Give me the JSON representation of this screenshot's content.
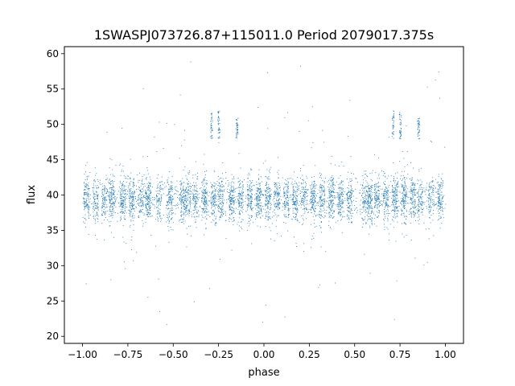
{
  "chart_data": {
    "type": "scatter",
    "title": "1SWASPJ073726.87+115011.0 Period 2079017.375s",
    "xlabel": "phase",
    "ylabel": "flux",
    "xlim": [
      -1.1,
      1.1
    ],
    "ylim": [
      19,
      61
    ],
    "xticks": [
      -1.0,
      -0.75,
      -0.5,
      -0.25,
      0.0,
      0.25,
      0.5,
      0.75,
      1.0
    ],
    "xtick_labels": [
      "−1.00",
      "−0.75",
      "−0.50",
      "−0.25",
      "0.00",
      "0.25",
      "0.50",
      "0.75",
      "1.00"
    ],
    "yticks": [
      20,
      25,
      30,
      35,
      40,
      45,
      50,
      55,
      60
    ],
    "ytick_labels": [
      "20",
      "25",
      "30",
      "35",
      "40",
      "45",
      "50",
      "55",
      "60"
    ],
    "grid": false,
    "legend": "none",
    "point_color": "#1f77b4",
    "phase_range": [
      -1.0,
      1.0
    ],
    "flux_median": 39.5,
    "flux_spread": [
      34,
      46
    ],
    "flux_extremes": [
      21,
      59
    ],
    "dense_columns_phase": [
      -0.98,
      -0.93,
      -0.88,
      -0.84,
      -0.78,
      -0.73,
      -0.68,
      -0.64,
      -0.58,
      -0.52,
      -0.45,
      -0.42,
      -0.38,
      -0.33,
      -0.28,
      -0.24,
      -0.18,
      -0.13,
      -0.08,
      -0.03,
      0.02,
      0.07,
      0.12,
      0.17,
      0.22,
      0.27,
      0.32,
      0.37,
      0.42,
      0.47,
      0.55,
      0.58,
      0.62,
      0.67,
      0.72,
      0.77,
      0.82,
      0.86,
      0.92,
      0.97
    ],
    "high_flux_clusters": [
      {
        "phase": -0.29,
        "flux": [
          48,
          52
        ]
      },
      {
        "phase": -0.25,
        "flux": [
          48,
          52
        ]
      },
      {
        "phase": -0.15,
        "flux": [
          48,
          51
        ]
      },
      {
        "phase": 0.71,
        "flux": [
          48,
          52
        ]
      },
      {
        "phase": 0.75,
        "flux": [
          48,
          52
        ]
      },
      {
        "phase": 0.85,
        "flux": [
          48,
          51
        ]
      }
    ]
  }
}
